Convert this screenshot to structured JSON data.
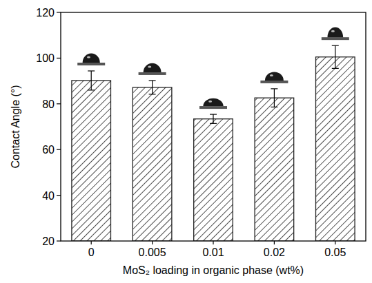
{
  "chart_data": {
    "type": "bar",
    "x_label": "MoS₂ loading in organic phase (wt%)",
    "y_label": "Contact Angle (°)",
    "categories": [
      "0",
      "0.005",
      "0.01",
      "0.02",
      "0.05"
    ],
    "values": [
      90.2,
      87.2,
      73.4,
      82.6,
      100.5
    ],
    "errors": [
      4.2,
      3.0,
      2.0,
      4.0,
      5.0
    ],
    "color": "#222222",
    "ylim": [
      20,
      120
    ],
    "yticks": [
      20,
      40,
      60,
      80,
      100,
      120
    ],
    "grid": false
  }
}
